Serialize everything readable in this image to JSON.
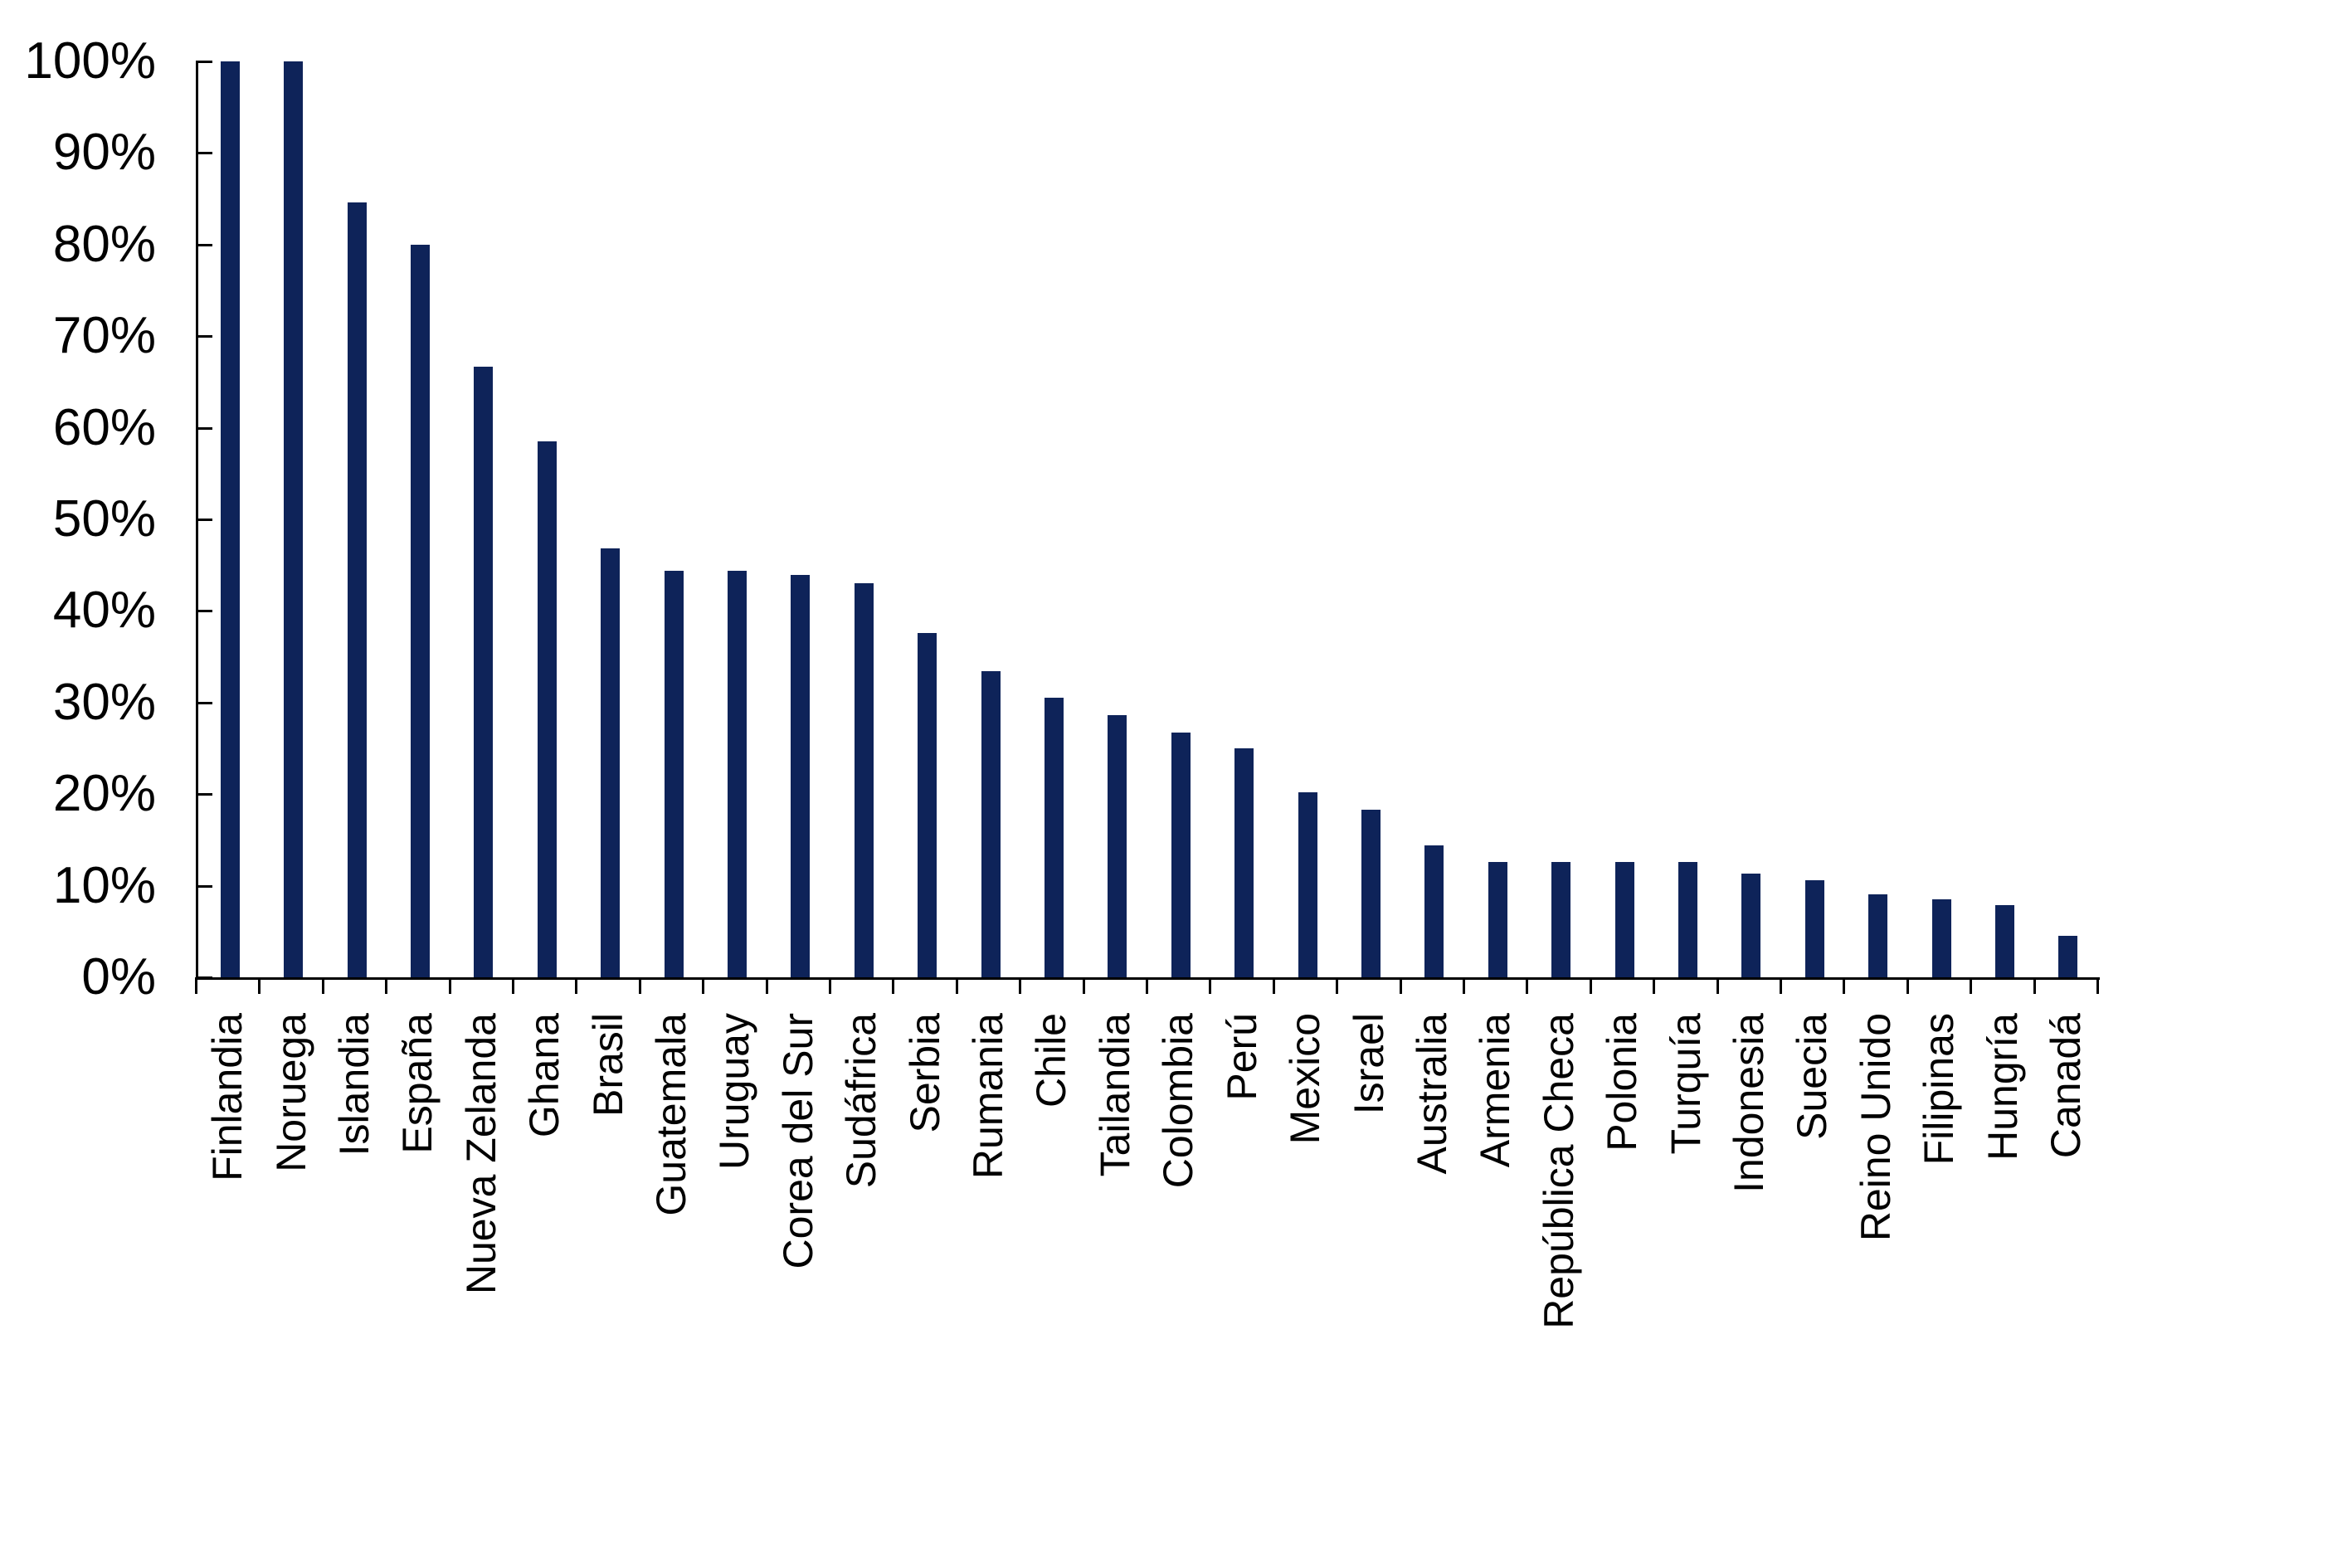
{
  "page": {
    "background_color": "#ffffff",
    "title": ""
  },
  "chart_data": {
    "type": "bar",
    "title": "",
    "xlabel": "",
    "ylabel": "",
    "legend": false,
    "grid": false,
    "bar_color": "#0e2359",
    "axis_color": "#000000",
    "text_color": "#000000",
    "ylim": [
      0,
      100
    ],
    "y_tick_labels": [
      "0%",
      "10%",
      "20%",
      "30%",
      "40%",
      "50%",
      "60%",
      "70%",
      "80%",
      "90%",
      "100%"
    ],
    "categories": [
      "Finlandia",
      "Noruega",
      "Islandia",
      "España",
      "Nueva Zelanda",
      "Ghana",
      "Brasil",
      "Guatemala",
      "Uruguay",
      "Corea del Sur",
      "Sudáfrica",
      "Serbia",
      "Rumania",
      "Chile",
      "Tailandia",
      "Colombia",
      "Perú",
      "Mexico",
      "Israel",
      "Australia",
      "Armenia",
      "República Checa",
      "Polonia",
      "Turquía",
      "Indonesia",
      "Suecia",
      "Reino Unido",
      "Filipinas",
      "Hungría",
      "Canadá"
    ],
    "values": [
      100,
      100,
      84.6,
      80,
      66.7,
      58.5,
      46.8,
      44.4,
      44.4,
      43.9,
      43,
      37.6,
      33.4,
      30.5,
      28.6,
      26.7,
      25,
      20.2,
      18.3,
      14.4,
      12.6,
      12.6,
      12.6,
      12.6,
      11.3,
      10.6,
      9.1,
      8.5,
      7.9,
      4.5
    ]
  }
}
